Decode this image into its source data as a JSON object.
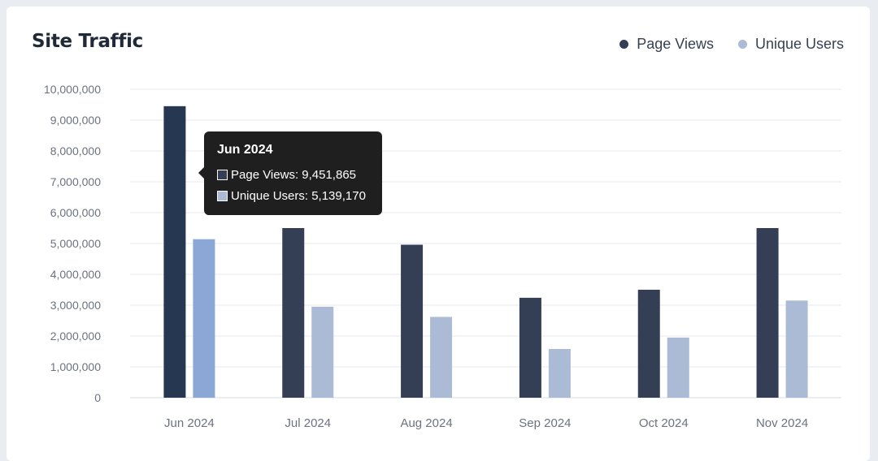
{
  "chart_data": {
    "type": "bar",
    "title": "Site Traffic",
    "categories": [
      "Jun 2024",
      "Jul 2024",
      "Aug 2024",
      "Sep 2024",
      "Oct 2024",
      "Nov 2024"
    ],
    "series": [
      {
        "name": "Page Views",
        "values": [
          9451865,
          5500000,
          4960000,
          3240000,
          3500000,
          5500000
        ],
        "color": "#343f55"
      },
      {
        "name": "Unique Users",
        "values": [
          5139170,
          2950000,
          2620000,
          1580000,
          1950000,
          3150000
        ],
        "color": "#abbbd5"
      }
    ],
    "highlight_color": {
      "Page Views": "#263752",
      "Unique Users": "#8aa7d6"
    },
    "yticks": [
      "0",
      "1,000,000",
      "2,000,000",
      "3,000,000",
      "4,000,000",
      "5,000,000",
      "6,000,000",
      "7,000,000",
      "8,000,000",
      "9,000,000",
      "10,000,000"
    ],
    "ylim": [
      0,
      10000000
    ],
    "grid": true,
    "legend_position": "top-right"
  },
  "tooltip": {
    "title": "Jun 2024",
    "rows": [
      {
        "label": "Page Views: 9,451,865",
        "color": "#343f55"
      },
      {
        "label": "Unique Users: 5,139,170",
        "color": "#abbbd5"
      }
    ]
  }
}
